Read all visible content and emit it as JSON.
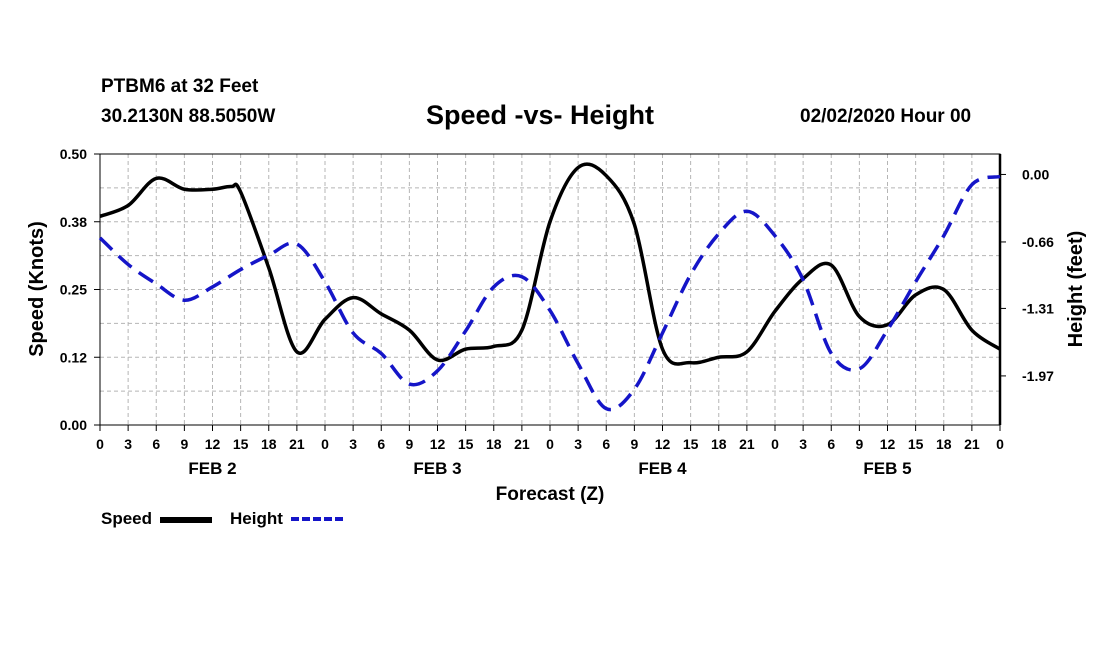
{
  "header": {
    "station": "PTBM6 at 32 Feet",
    "coords": "30.2130N 88.5050W",
    "title": "Speed -vs- Height",
    "timestamp": "02/02/2020 Hour 00"
  },
  "legend": {
    "speed_label": "Speed",
    "height_label": "Height"
  },
  "colors": {
    "speed": "#000000",
    "height": "#1515c8",
    "grid": "#b5b5b5"
  },
  "chart_data": {
    "type": "line",
    "title": "Speed -vs- Height",
    "xlabel": "Forecast (Z)",
    "ylabel": "Speed (Knots)",
    "y2label": "Height (feet)",
    "x_range_hours": [
      0,
      96
    ],
    "x_ticks": [
      {
        "hour": 0,
        "label": "0"
      },
      {
        "hour": 3,
        "label": "3"
      },
      {
        "hour": 6,
        "label": "6"
      },
      {
        "hour": 9,
        "label": "9"
      },
      {
        "hour": 12,
        "label": "12"
      },
      {
        "hour": 15,
        "label": "15"
      },
      {
        "hour": 18,
        "label": "18"
      },
      {
        "hour": 21,
        "label": "21"
      },
      {
        "hour": 24,
        "label": "0"
      },
      {
        "hour": 27,
        "label": "3"
      },
      {
        "hour": 30,
        "label": "6"
      },
      {
        "hour": 33,
        "label": "9"
      },
      {
        "hour": 36,
        "label": "12"
      },
      {
        "hour": 39,
        "label": "15"
      },
      {
        "hour": 42,
        "label": "18"
      },
      {
        "hour": 45,
        "label": "21"
      },
      {
        "hour": 48,
        "label": "0"
      },
      {
        "hour": 51,
        "label": "3"
      },
      {
        "hour": 54,
        "label": "6"
      },
      {
        "hour": 57,
        "label": "9"
      },
      {
        "hour": 60,
        "label": "12"
      },
      {
        "hour": 63,
        "label": "15"
      },
      {
        "hour": 66,
        "label": "18"
      },
      {
        "hour": 69,
        "label": "21"
      },
      {
        "hour": 72,
        "label": "0"
      },
      {
        "hour": 75,
        "label": "3"
      },
      {
        "hour": 78,
        "label": "6"
      },
      {
        "hour": 81,
        "label": "9"
      },
      {
        "hour": 84,
        "label": "12"
      },
      {
        "hour": 87,
        "label": "15"
      },
      {
        "hour": 90,
        "label": "18"
      },
      {
        "hour": 93,
        "label": "21"
      },
      {
        "hour": 96,
        "label": "0"
      }
    ],
    "day_labels": [
      {
        "hour": 12,
        "label": "FEB 2"
      },
      {
        "hour": 36,
        "label": "FEB 3"
      },
      {
        "hour": 60,
        "label": "FEB 4"
      },
      {
        "hour": 84,
        "label": "FEB 5"
      }
    ],
    "ylim": [
      0,
      0.5
    ],
    "y_ticks": [
      {
        "value": 0.0,
        "label": "0.00"
      },
      {
        "value": 0.125,
        "label": "0.12"
      },
      {
        "value": 0.25,
        "label": "0.25"
      },
      {
        "value": 0.375,
        "label": "0.38"
      },
      {
        "value": 0.5,
        "label": "0.50"
      }
    ],
    "y2lim": [
      -2.45,
      0.2
    ],
    "y2_ticks": [
      {
        "value": 0.0,
        "label": "0.00"
      },
      {
        "value": -0.66,
        "label": "-0.66"
      },
      {
        "value": -1.31,
        "label": "-1.31"
      },
      {
        "value": -1.97,
        "label": "-1.97"
      }
    ],
    "series": [
      {
        "name": "Speed",
        "axis": "left",
        "style": "solid",
        "x": [
          0,
          3,
          6,
          9,
          12,
          14,
          15,
          18,
          21,
          24,
          27,
          30,
          33,
          36,
          39,
          42,
          45,
          48,
          51,
          54,
          57,
          60,
          63,
          66,
          69,
          72,
          75,
          78,
          81,
          84,
          87,
          90,
          93,
          96
        ],
        "values": [
          0.385,
          0.405,
          0.455,
          0.435,
          0.435,
          0.44,
          0.43,
          0.29,
          0.135,
          0.195,
          0.235,
          0.205,
          0.175,
          0.12,
          0.14,
          0.145,
          0.175,
          0.375,
          0.475,
          0.46,
          0.37,
          0.14,
          0.115,
          0.125,
          0.135,
          0.21,
          0.27,
          0.295,
          0.2,
          0.185,
          0.24,
          0.25,
          0.175,
          0.14
        ]
      },
      {
        "name": "Height",
        "axis": "right",
        "style": "dashed",
        "x": [
          0,
          3,
          6,
          9,
          12,
          15,
          18,
          21,
          24,
          27,
          30,
          33,
          36,
          39,
          42,
          45,
          48,
          51,
          54,
          57,
          60,
          63,
          66,
          69,
          72,
          75,
          78,
          81,
          84,
          87,
          90,
          93,
          96
        ],
        "values": [
          -0.62,
          -0.88,
          -1.07,
          -1.23,
          -1.1,
          -0.93,
          -0.79,
          -0.68,
          -1.05,
          -1.55,
          -1.75,
          -2.05,
          -1.92,
          -1.53,
          -1.1,
          -1.0,
          -1.33,
          -1.85,
          -2.29,
          -2.1,
          -1.55,
          -0.98,
          -0.58,
          -0.36,
          -0.6,
          -1.03,
          -1.75,
          -1.9,
          -1.52,
          -1.05,
          -0.6,
          -0.1,
          -0.02
        ]
      }
    ]
  }
}
